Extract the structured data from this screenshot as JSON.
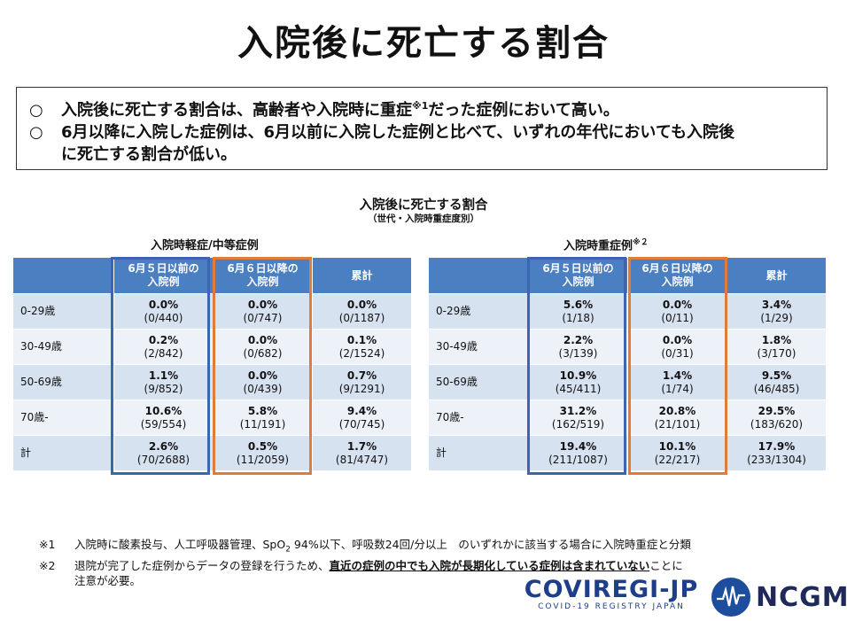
{
  "title": "入院後に死亡する割合",
  "summary": {
    "bullet": "○",
    "line1": "入院後に死亡する割合は、高齢者や入院時に重症",
    "line1_sup": "※1",
    "line1_end": "だった症例において高い。",
    "line2": "6月以降に入院した症例は、6月以前に入院した症例と比べて、いずれの年代においても入院後",
    "line3": "に死亡する割合が低い。"
  },
  "chart": {
    "title": "入院後に死亡する割合",
    "subtitle": "（世代・入院時重症度別）"
  },
  "tables": {
    "mild": {
      "title": "入院時軽症/中等症例",
      "headers": [
        "6月５日以前の\n入院例",
        "6月６日以降の\n入院例",
        "累計"
      ],
      "rows": [
        {
          "label": "0-29歳",
          "cells": [
            [
              "0.0%",
              "(0/440)"
            ],
            [
              "0.0%",
              "(0/747)"
            ],
            [
              "0.0%",
              "(0/1187)"
            ]
          ]
        },
        {
          "label": "30-49歳",
          "cells": [
            [
              "0.2%",
              "(2/842)"
            ],
            [
              "0.0%",
              "(0/682)"
            ],
            [
              "0.1%",
              "(2/1524)"
            ]
          ]
        },
        {
          "label": "50-69歳",
          "cells": [
            [
              "1.1%",
              "(9/852)"
            ],
            [
              "0.0%",
              "(0/439)"
            ],
            [
              "0.7%",
              "(9/1291)"
            ]
          ]
        },
        {
          "label": "70歳-",
          "cells": [
            [
              "10.6%",
              "(59/554)"
            ],
            [
              "5.8%",
              "(11/191)"
            ],
            [
              "9.4%",
              "(70/745)"
            ]
          ]
        },
        {
          "label": "計",
          "cells": [
            [
              "2.6%",
              "(70/2688)"
            ],
            [
              "0.5%",
              "(11/2059)"
            ],
            [
              "1.7%",
              "(81/4747)"
            ]
          ]
        }
      ]
    },
    "severe": {
      "title": "入院時重症例",
      "title_sup": "※２",
      "headers": [
        "6月５日以前の\n入院例",
        "6月６日以降の\n入院例",
        "累計"
      ],
      "rows": [
        {
          "label": "0-29歳",
          "cells": [
            [
              "5.6%",
              "(1/18)"
            ],
            [
              "0.0%",
              "(0/11)"
            ],
            [
              "3.4%",
              "(1/29)"
            ]
          ]
        },
        {
          "label": "30-49歳",
          "cells": [
            [
              "2.2%",
              "(3/139)"
            ],
            [
              "0.0%",
              "(0/31)"
            ],
            [
              "1.8%",
              "(3/170)"
            ]
          ]
        },
        {
          "label": "50-69歳",
          "cells": [
            [
              "10.9%",
              "(45/411)"
            ],
            [
              "1.4%",
              "(1/74)"
            ],
            [
              "9.5%",
              "(46/485)"
            ]
          ]
        },
        {
          "label": "70歳-",
          "cells": [
            [
              "31.2%",
              "(162/519)"
            ],
            [
              "20.8%",
              "(21/101)"
            ],
            [
              "29.5%",
              "(183/620)"
            ]
          ]
        },
        {
          "label": "計",
          "cells": [
            [
              "19.4%",
              "(211/1087)"
            ],
            [
              "10.1%",
              "(22/217)"
            ],
            [
              "17.9%",
              "(233/1304)"
            ]
          ]
        }
      ]
    }
  },
  "notes": {
    "n1_mark": "※1",
    "n1_a": "入院時に酸素投与、人工呼吸器管理、SpO",
    "n1_sub": "2",
    "n1_b": " 94%以下、呼吸数24回/分以上　のいずれかに該当する場合に入院時重症と分類",
    "n2_mark": "※2",
    "n2_a": "退院が完了した症例からデータの登録を行うため、",
    "n2_u": "直近の症例の中でも入院が長期化している症例は含まれていない",
    "n2_b": "ことに",
    "n2_c": "注意が必要。"
  },
  "logos": {
    "covregi": "COVIREGI-JP",
    "covregi_sub": "COVID-19 REGISTRY JAPAN",
    "ncgm": "NCGM"
  },
  "colors": {
    "header_blue": "#4a7fc1",
    "frame_blue": "#3d64b0",
    "frame_orange": "#e07b39",
    "row_dark": "#d7e2f1",
    "row_light": "#edf2f9"
  }
}
